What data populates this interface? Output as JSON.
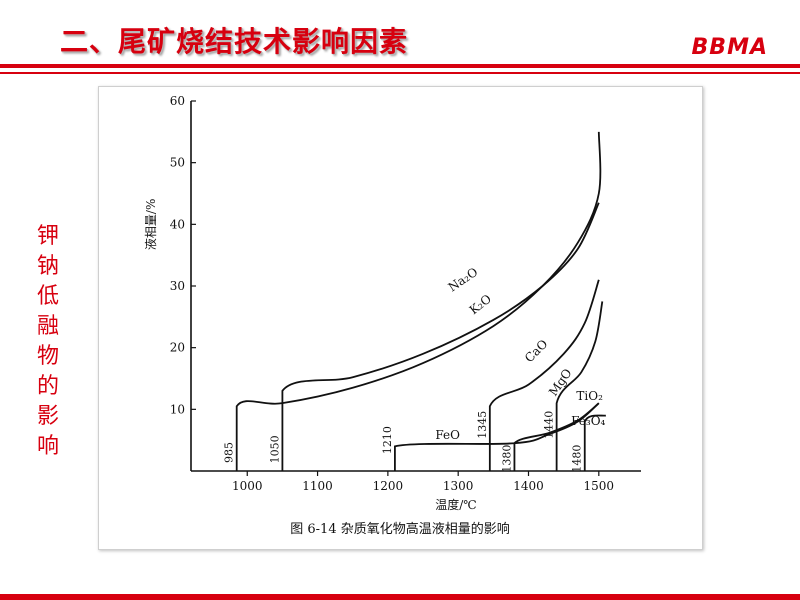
{
  "slide": {
    "title": "二、尾矿烧结技术影响因素",
    "logo_text": "BBMA",
    "side_label": "钾钠低融物的影响",
    "accent_color": "#d7000f"
  },
  "chart_data": {
    "type": "line",
    "caption": "图 6-14    杂质氧化物高温液相量的影响",
    "xlabel": "温度/℃",
    "ylabel": "液相量/%",
    "xlim": [
      920,
      1560
    ],
    "ylim": [
      0,
      60
    ],
    "x_ticks": [
      1000,
      1100,
      1200,
      1300,
      1400,
      1500
    ],
    "y_ticks": [
      10,
      20,
      30,
      40,
      50,
      60
    ],
    "grid": false,
    "series": [
      {
        "name": "Na₂O",
        "start_temp": "985",
        "points": [
          [
            985,
            0
          ],
          [
            985,
            10.5
          ],
          [
            1050,
            11
          ],
          [
            1150,
            13.5
          ],
          [
            1250,
            17.5
          ],
          [
            1350,
            23.5
          ],
          [
            1420,
            30
          ],
          [
            1470,
            37
          ],
          [
            1500,
            45
          ],
          [
            1500,
            55
          ]
        ]
      },
      {
        "name": "K₂O",
        "start_temp": "1050",
        "points": [
          [
            1050,
            0
          ],
          [
            1050,
            13
          ],
          [
            1150,
            15.2
          ],
          [
            1250,
            19
          ],
          [
            1350,
            24.5
          ],
          [
            1420,
            30
          ],
          [
            1470,
            36
          ],
          [
            1500,
            43.5
          ]
        ]
      },
      {
        "name": "CaO",
        "start_temp": "1345",
        "points": [
          [
            1345,
            0
          ],
          [
            1345,
            10.5
          ],
          [
            1400,
            14
          ],
          [
            1450,
            19
          ],
          [
            1480,
            24
          ],
          [
            1500,
            31
          ]
        ]
      },
      {
        "name": "MgO",
        "start_temp": "1440",
        "points": [
          [
            1440,
            0
          ],
          [
            1440,
            11
          ],
          [
            1475,
            16
          ],
          [
            1495,
            21
          ],
          [
            1505,
            27.5
          ]
        ]
      },
      {
        "name": "FeO",
        "start_temp": "1210",
        "points": [
          [
            1210,
            0
          ],
          [
            1210,
            4
          ],
          [
            1380,
            4.5
          ],
          [
            1430,
            6
          ],
          [
            1470,
            8
          ],
          [
            1500,
            11
          ]
        ]
      },
      {
        "name": "TiO₂",
        "start_temp": "1380",
        "points": [
          [
            1380,
            0
          ],
          [
            1380,
            4.5
          ],
          [
            1430,
            6.2
          ],
          [
            1470,
            8.2
          ],
          [
            1500,
            11
          ]
        ]
      },
      {
        "name": "Fe₃O₄",
        "start_temp": "1480",
        "points": [
          [
            1480,
            0
          ],
          [
            1480,
            8
          ],
          [
            1510,
            9
          ]
        ]
      }
    ]
  }
}
